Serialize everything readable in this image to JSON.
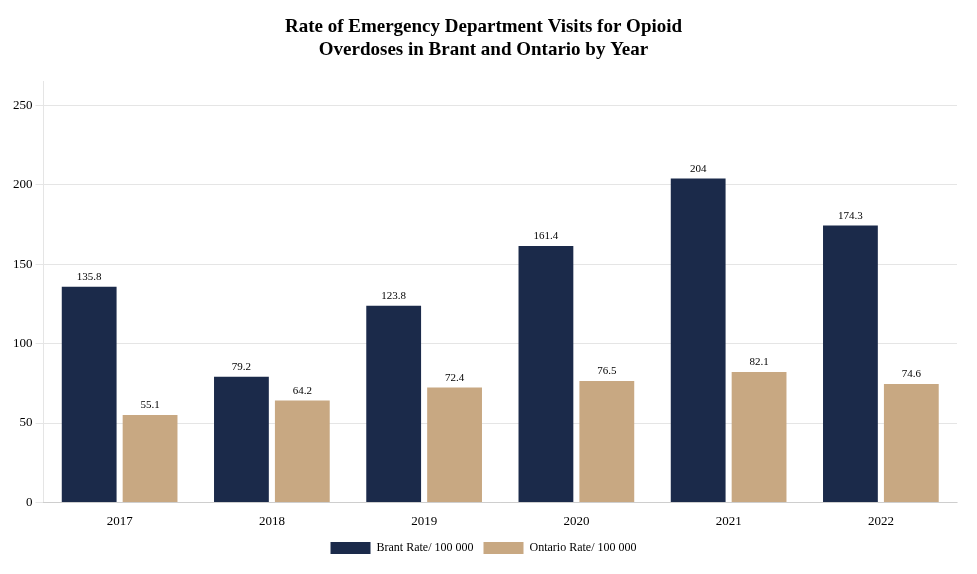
{
  "chart_data": {
    "type": "bar",
    "title": "Rate of Emergency Department Visits for Opioid\nOverdoses in Brant and Ontario by Year",
    "categories": [
      "2017",
      "2018",
      "2019",
      "2020",
      "2021",
      "2022"
    ],
    "series": [
      {
        "name": "Brant Rate/ 100 000",
        "color": "#1B2A4A",
        "values": [
          135.8,
          79.2,
          123.8,
          161.4,
          204,
          174.3
        ]
      },
      {
        "name": "Ontario Rate/ 100 000",
        "color": "#C8A882",
        "values": [
          55.1,
          64.2,
          72.4,
          76.5,
          82.1,
          74.6
        ]
      }
    ],
    "ylim": [
      0,
      265
    ],
    "yticks": [
      0,
      50,
      100,
      150,
      200,
      250
    ],
    "grid": true,
    "legend": "bottom",
    "data_labels": true
  }
}
